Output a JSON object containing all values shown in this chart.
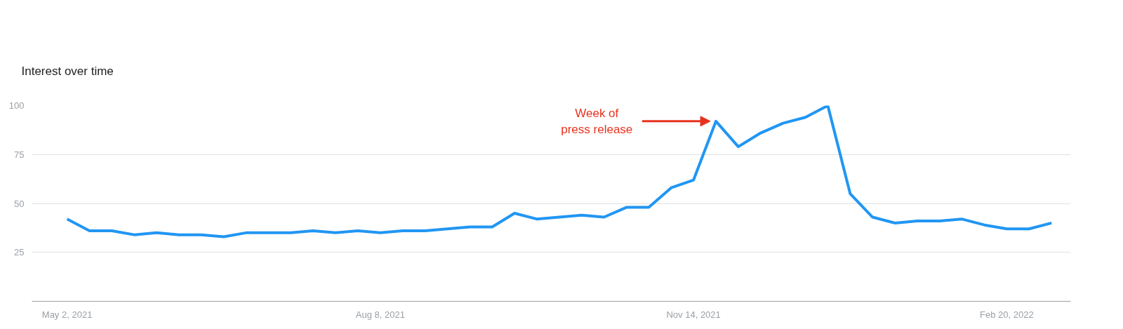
{
  "chart_data": {
    "type": "line",
    "title": "Interest over time",
    "x": [
      "2021-05-02",
      "2021-05-09",
      "2021-05-16",
      "2021-05-23",
      "2021-05-30",
      "2021-06-06",
      "2021-06-13",
      "2021-06-20",
      "2021-06-27",
      "2021-07-04",
      "2021-07-11",
      "2021-07-18",
      "2021-07-25",
      "2021-08-01",
      "2021-08-08",
      "2021-08-15",
      "2021-08-22",
      "2021-08-29",
      "2021-09-05",
      "2021-09-12",
      "2021-09-19",
      "2021-09-26",
      "2021-10-03",
      "2021-10-10",
      "2021-10-17",
      "2021-10-24",
      "2021-10-31",
      "2021-11-07",
      "2021-11-14",
      "2021-11-21",
      "2021-11-28",
      "2021-12-05",
      "2021-12-12",
      "2021-12-19",
      "2021-12-26",
      "2022-01-02",
      "2022-01-09",
      "2022-01-16",
      "2022-01-23",
      "2022-01-30",
      "2022-02-06",
      "2022-02-13",
      "2022-02-20",
      "2022-02-27",
      "2022-03-06"
    ],
    "series": [
      {
        "color": "#2196f3",
        "values": [
          42,
          36,
          36,
          34,
          35,
          34,
          34,
          33,
          35,
          35,
          35,
          36,
          35,
          36,
          35,
          36,
          36,
          37,
          38,
          38,
          45,
          42,
          43,
          44,
          43,
          48,
          48,
          58,
          62,
          92,
          79,
          86,
          91,
          94,
          100,
          55,
          43,
          40,
          41,
          41,
          42,
          39,
          37,
          37,
          40
        ]
      }
    ],
    "xlim": [
      "2021-04-21",
      "2022-03-12"
    ],
    "xticks": [
      {
        "value": "2021-05-02",
        "label": "May 2, 2021"
      },
      {
        "value": "2021-08-08",
        "label": "Aug 8, 2021"
      },
      {
        "value": "2021-11-14",
        "label": "Nov 14, 2021"
      },
      {
        "value": "2022-02-20",
        "label": "Feb 20, 2022"
      }
    ],
    "ylim": [
      0,
      100
    ],
    "yticks": [
      25,
      50,
      75,
      100
    ],
    "grid": "y",
    "line_style": "solid",
    "annotations": [
      {
        "text": "Week of\npress release",
        "x": "2021-11-21",
        "y": 92
      }
    ]
  }
}
